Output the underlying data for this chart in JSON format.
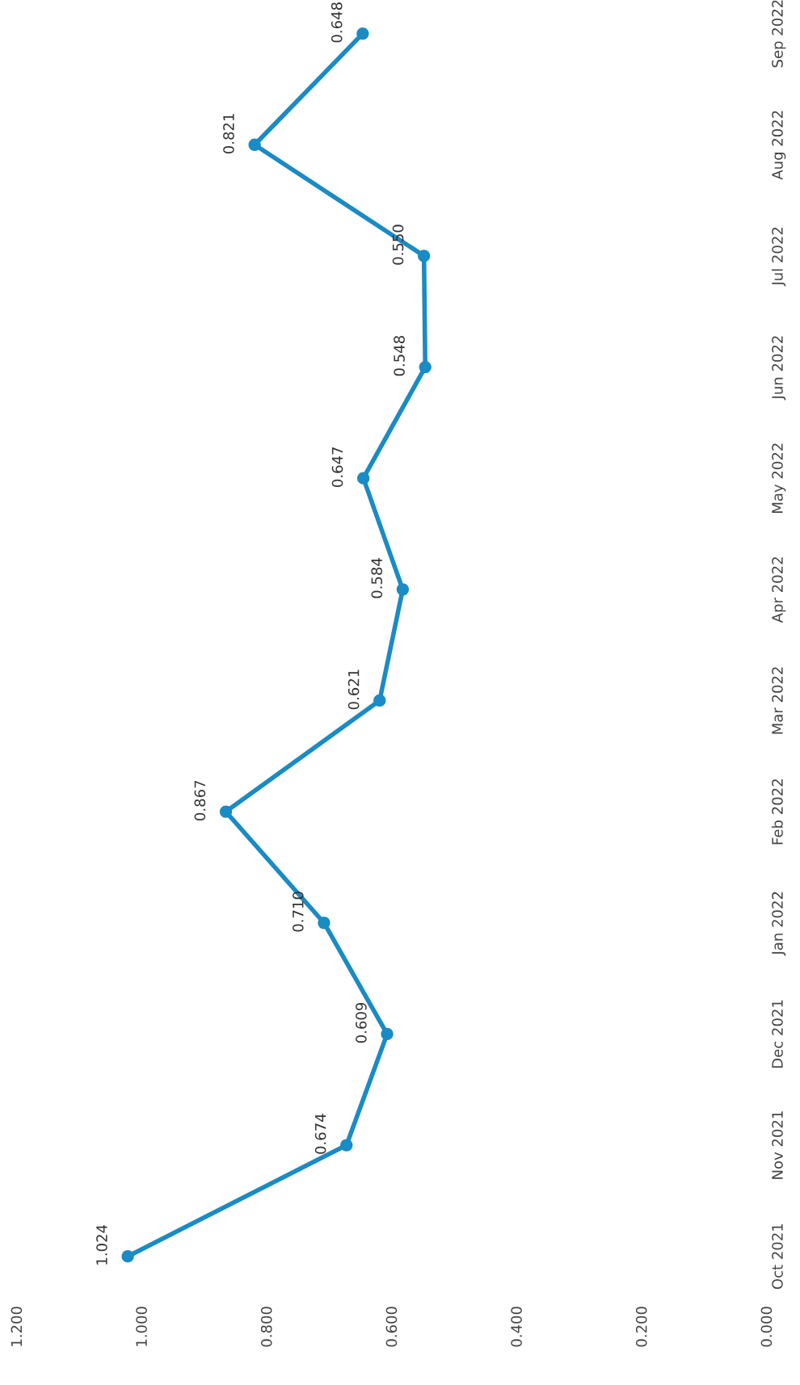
{
  "chart_data": {
    "type": "line",
    "orientation": "horizontal",
    "categories": [
      "Sep 2022",
      "Aug 2022",
      "Jul 2022",
      "Jun 2022",
      "May 2022",
      "Apr 2022",
      "Mar 2022",
      "Feb 2022",
      "Jan 2022",
      "Dec 2021",
      "Nov 2021",
      "Oct 2021"
    ],
    "series": [
      {
        "color": "#1a8bc4",
        "values": [
          0.648,
          0.821,
          0.55,
          0.548,
          0.647,
          0.584,
          0.621,
          0.867,
          0.71,
          0.609,
          0.674,
          1.024
        ],
        "value_labels": [
          "0.648",
          "0.821",
          "0.550",
          "0.548",
          "0.647",
          "0.584",
          "0.621",
          "0.867",
          "0.710",
          "0.609",
          "0.674",
          "1.024"
        ]
      }
    ],
    "xlim": [
      1.2,
      0
    ],
    "xticks": [
      {
        "value": 1.2,
        "label": "1.200"
      },
      {
        "value": 1.0,
        "label": "1.000"
      },
      {
        "value": 0.8,
        "label": "0.800"
      },
      {
        "value": 0.6,
        "label": "0.600"
      },
      {
        "value": 0.4,
        "label": "0.400"
      },
      {
        "value": 0.2,
        "label": "0.200"
      },
      {
        "value": 0,
        "label": "0.000"
      }
    ],
    "marker": "circle",
    "line_style": "solid",
    "grid": false,
    "legend": false
  }
}
